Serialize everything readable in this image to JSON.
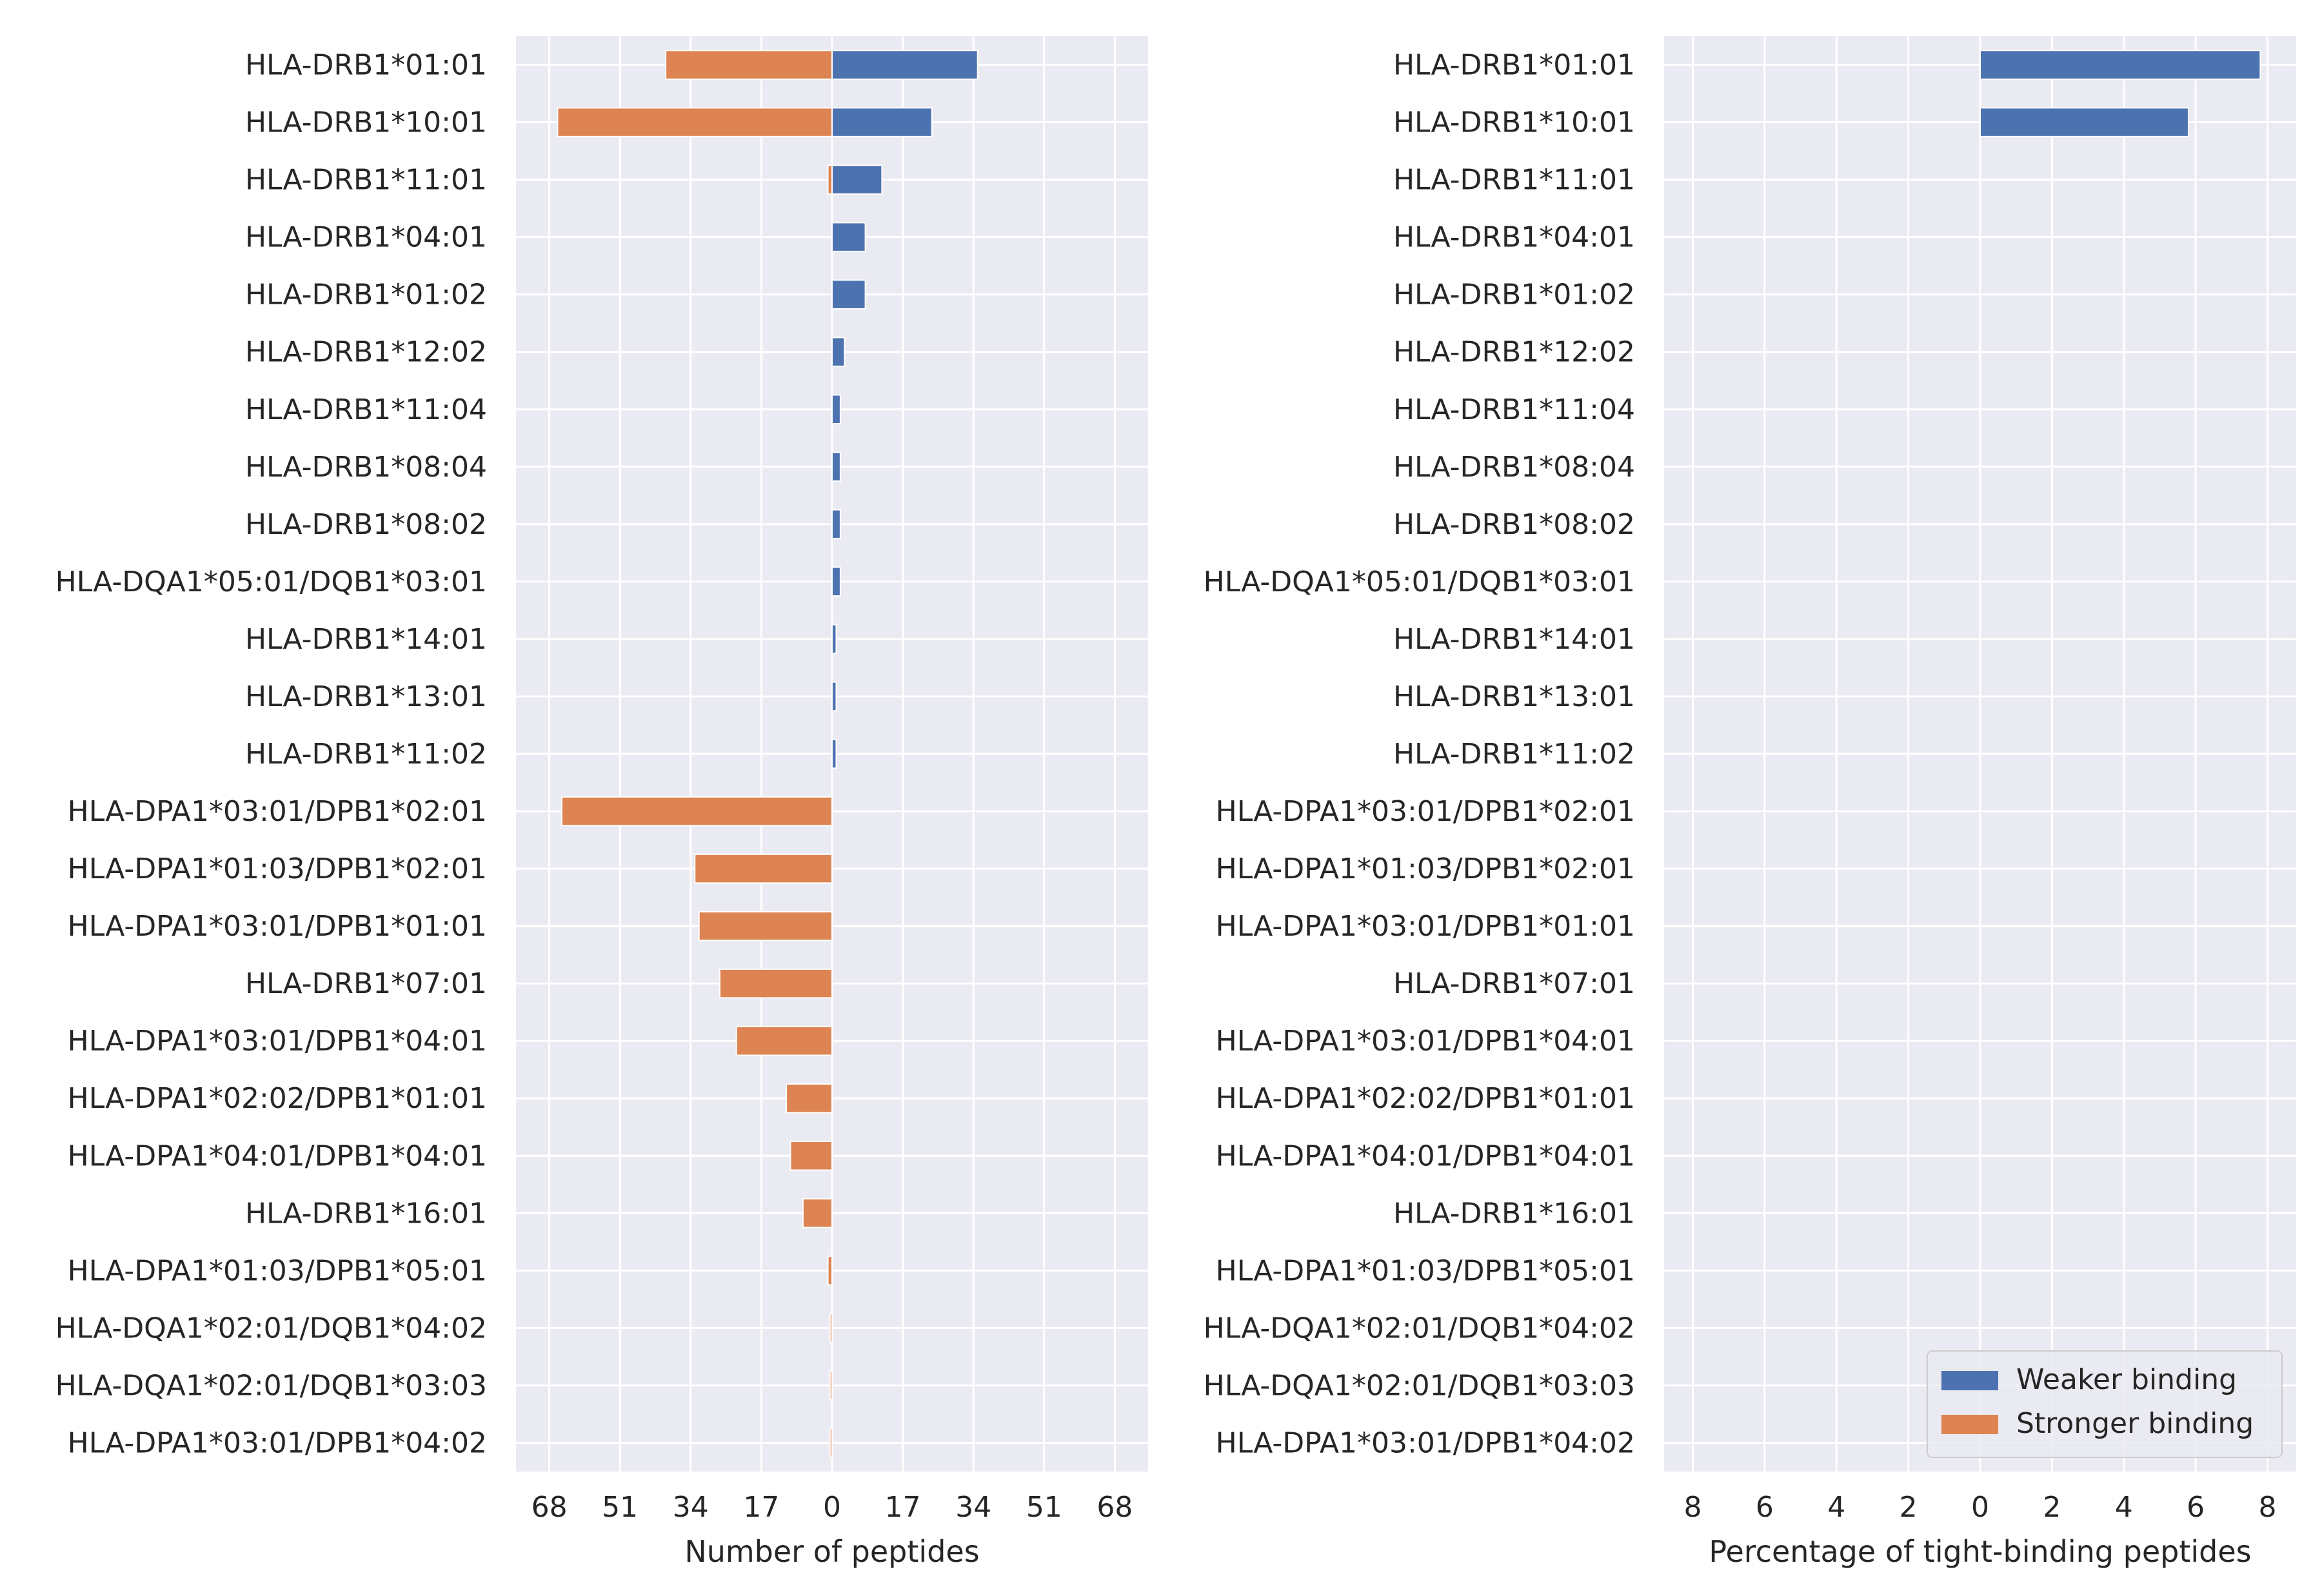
{
  "chart_data": [
    {
      "type": "bar",
      "orientation": "horizontal",
      "layout": "diverging",
      "xlabel": "Number of peptides",
      "ylabel": "",
      "xlim": [
        -76,
        76
      ],
      "xticks": [
        -68,
        -51,
        -34,
        -17,
        0,
        17,
        34,
        51,
        68
      ],
      "xtick_labels": [
        "68",
        "51",
        "34",
        "17",
        "0",
        "17",
        "34",
        "51",
        "68"
      ],
      "categories": [
        "HLA-DRB1*01:01",
        "HLA-DRB1*10:01",
        "HLA-DRB1*11:01",
        "HLA-DRB1*04:01",
        "HLA-DRB1*01:02",
        "HLA-DRB1*12:02",
        "HLA-DRB1*11:04",
        "HLA-DRB1*08:04",
        "HLA-DRB1*08:02",
        "HLA-DQA1*05:01/DQB1*03:01",
        "HLA-DRB1*14:01",
        "HLA-DRB1*13:01",
        "HLA-DRB1*11:02",
        "HLA-DPA1*03:01/DPB1*02:01",
        "HLA-DPA1*01:03/DPB1*02:01",
        "HLA-DPA1*03:01/DPB1*01:01",
        "HLA-DRB1*07:01",
        "HLA-DPA1*03:01/DPB1*04:01",
        "HLA-DPA1*02:02/DPB1*01:01",
        "HLA-DPA1*04:01/DPB1*04:01",
        "HLA-DRB1*16:01",
        "HLA-DPA1*01:03/DPB1*05:01",
        "HLA-DQA1*02:01/DQB1*04:02",
        "HLA-DQA1*02:01/DQB1*03:03",
        "HLA-DPA1*03:01/DPB1*04:02"
      ],
      "series": [
        {
          "name": "Weaker binding",
          "color": "#4c72b0",
          "direction": "right",
          "values": [
            35,
            24,
            12,
            8,
            8,
            3,
            2,
            2,
            2,
            2,
            1,
            1,
            1,
            0,
            0,
            0,
            0,
            0,
            0,
            0,
            0,
            0,
            0,
            0,
            0
          ]
        },
        {
          "name": "Stronger binding",
          "color": "#dd8452",
          "direction": "left",
          "values": [
            40,
            66,
            1,
            0,
            0,
            0,
            0,
            0,
            0,
            0,
            0,
            0,
            0,
            65,
            33,
            32,
            27,
            23,
            11,
            10,
            7,
            1,
            0.5,
            0.5,
            0.5
          ]
        }
      ],
      "grid": true
    },
    {
      "type": "bar",
      "orientation": "horizontal",
      "layout": "diverging",
      "xlabel": "Percentage of tight-binding peptides",
      "ylabel": "",
      "xlim": [
        -8.8,
        8.8
      ],
      "xticks": [
        -8,
        -6,
        -4,
        -2,
        0,
        2,
        4,
        6,
        8
      ],
      "xtick_labels": [
        "8",
        "6",
        "4",
        "2",
        "0",
        "2",
        "4",
        "6",
        "8"
      ],
      "categories": [
        "HLA-DRB1*01:01",
        "HLA-DRB1*10:01",
        "HLA-DRB1*11:01",
        "HLA-DRB1*04:01",
        "HLA-DRB1*01:02",
        "HLA-DRB1*12:02",
        "HLA-DRB1*11:04",
        "HLA-DRB1*08:04",
        "HLA-DRB1*08:02",
        "HLA-DQA1*05:01/DQB1*03:01",
        "HLA-DRB1*14:01",
        "HLA-DRB1*13:01",
        "HLA-DRB1*11:02",
        "HLA-DPA1*03:01/DPB1*02:01",
        "HLA-DPA1*01:03/DPB1*02:01",
        "HLA-DPA1*03:01/DPB1*01:01",
        "HLA-DRB1*07:01",
        "HLA-DPA1*03:01/DPB1*04:01",
        "HLA-DPA1*02:02/DPB1*01:01",
        "HLA-DPA1*04:01/DPB1*04:01",
        "HLA-DRB1*16:01",
        "HLA-DPA1*01:03/DPB1*05:01",
        "HLA-DQA1*02:01/DQB1*04:02",
        "HLA-DQA1*02:01/DQB1*03:03",
        "HLA-DPA1*03:01/DPB1*04:02"
      ],
      "series": [
        {
          "name": "Weaker binding",
          "color": "#4c72b0",
          "direction": "right",
          "values": [
            7.8,
            5.8,
            0,
            0,
            0,
            0,
            0,
            0,
            0,
            0,
            0,
            0,
            0,
            0,
            0,
            0,
            0,
            0,
            0,
            0,
            0,
            0,
            0,
            0,
            0
          ]
        },
        {
          "name": "Stronger binding",
          "color": "#dd8452",
          "direction": "left",
          "values": [
            0,
            0,
            0,
            0,
            0,
            0,
            0,
            0,
            0,
            0,
            0,
            0,
            0,
            0,
            0,
            0,
            0,
            0,
            0,
            0,
            0,
            0,
            0,
            0,
            0
          ]
        }
      ],
      "grid": true,
      "legend": {
        "position": "lower-right",
        "entries": [
          "Weaker binding",
          "Stronger binding"
        ]
      }
    }
  ]
}
